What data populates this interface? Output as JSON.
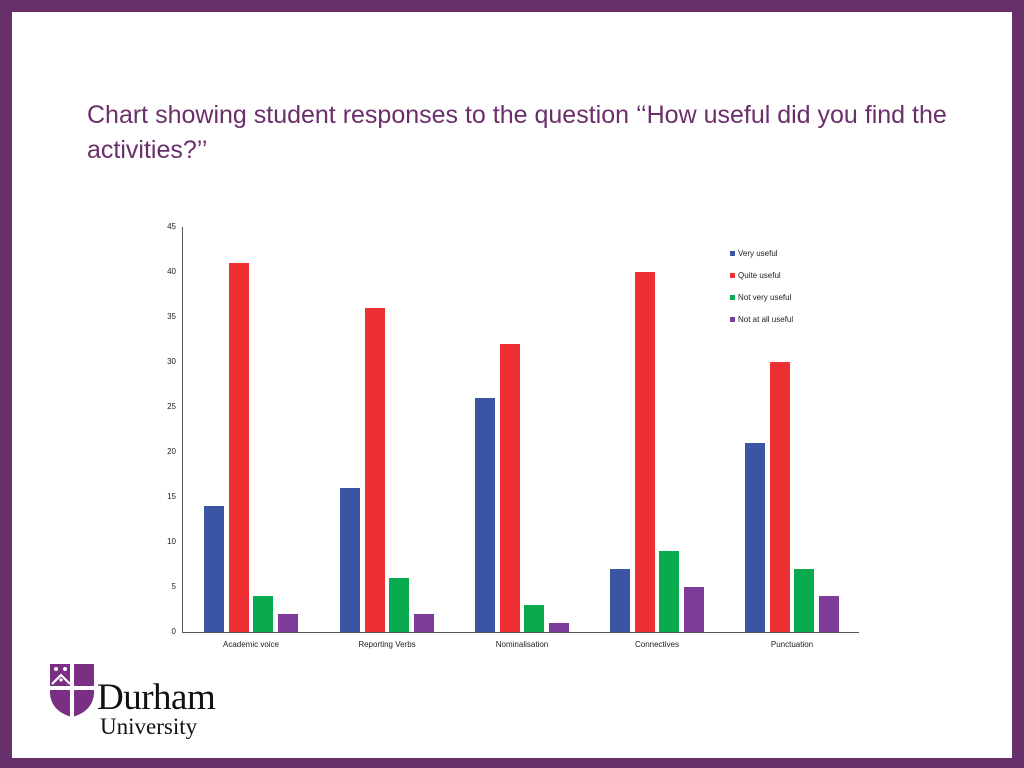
{
  "slide": {
    "title": "Chart showing student responses to the question ‘‘How useful did you find the activities?’’",
    "border_color": "#68306a",
    "title_color": "#6a2e6b"
  },
  "logo": {
    "name_line1": "Durham",
    "name_line2": "University"
  },
  "chart_data": {
    "type": "bar",
    "title": "",
    "xlabel": "",
    "ylabel": "",
    "ylim": [
      0,
      45
    ],
    "yticks": [
      0,
      5,
      10,
      15,
      20,
      25,
      30,
      35,
      40,
      45
    ],
    "grid": false,
    "legend_position": "top-right (inside plot)",
    "categories": [
      "Academic voice",
      "Reporting Verbs",
      "Nominalisation",
      "Connectives",
      "Punctuation"
    ],
    "series": [
      {
        "name": "Very useful",
        "color": "#3a55a4",
        "values": [
          14,
          16,
          26,
          7,
          21
        ]
      },
      {
        "name": "Quite useful",
        "color": "#ee3035",
        "values": [
          41,
          36,
          32,
          40,
          30
        ]
      },
      {
        "name": "Not very useful",
        "color": "#0aab4f",
        "values": [
          4,
          6,
          3,
          9,
          7
        ]
      },
      {
        "name": "Not at all useful",
        "color": "#7d3c98",
        "values": [
          2,
          2,
          1,
          5,
          4
        ]
      }
    ]
  }
}
